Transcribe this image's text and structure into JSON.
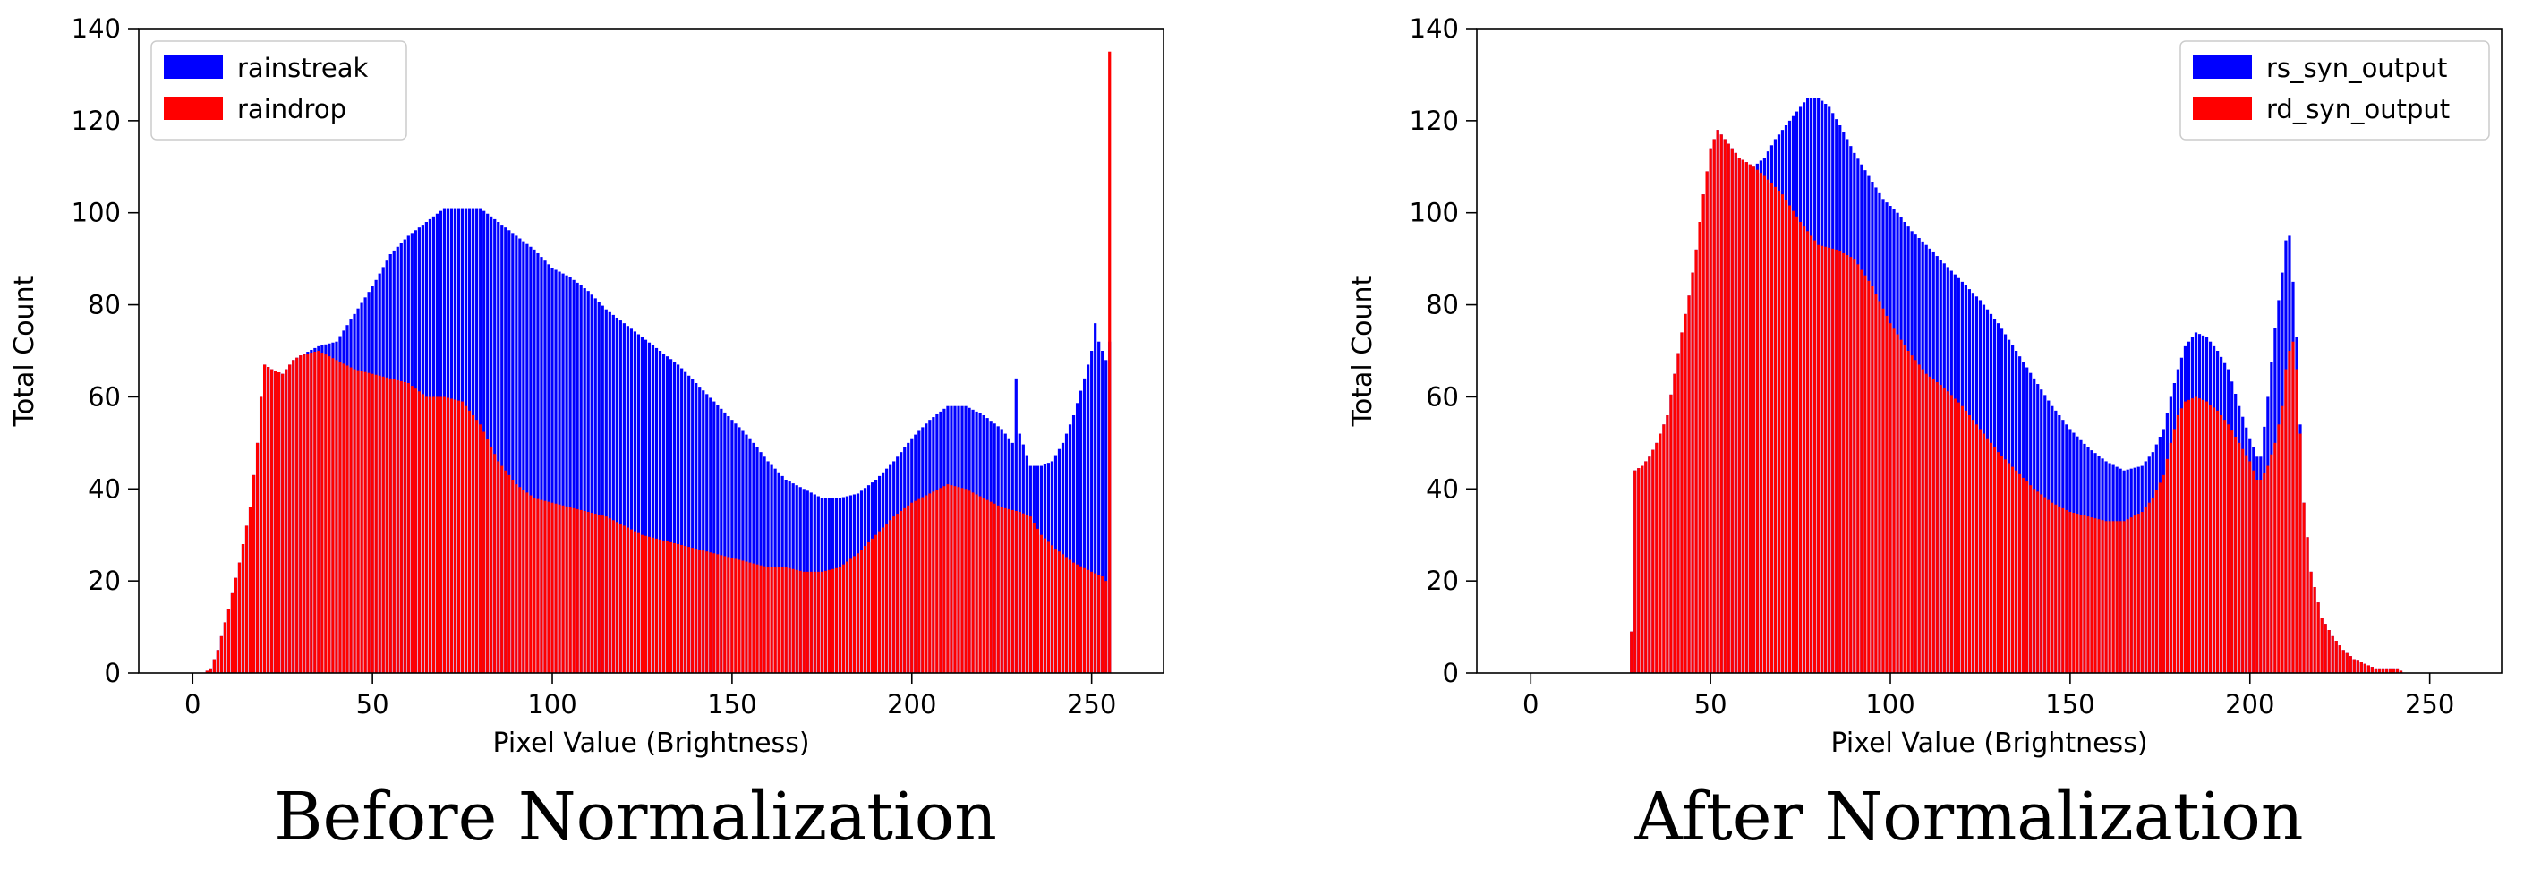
{
  "chart_data": [
    {
      "type": "bar",
      "stacking": "overlay",
      "caption": "Before Normalization",
      "xlabel": "Pixel Value (Brightness)",
      "ylabel": "Total Count",
      "xlim": [
        -15,
        270
      ],
      "ylim": [
        0,
        140
      ],
      "xticks": [
        0,
        50,
        100,
        150,
        200,
        250
      ],
      "yticks": [
        0,
        20,
        40,
        60,
        80,
        100,
        120,
        140
      ],
      "grid": false,
      "legend_position": "top-left",
      "series": [
        {
          "name": "rainstreak",
          "color": "#0000ff",
          "points": [
            [
              0,
              0
            ],
            [
              3,
              0
            ],
            [
              5,
              1
            ],
            [
              7,
              5
            ],
            [
              10,
              14
            ],
            [
              13,
              24
            ],
            [
              16,
              36
            ],
            [
              18,
              50
            ],
            [
              19,
              60
            ],
            [
              20,
              67
            ],
            [
              22,
              66
            ],
            [
              25,
              65
            ],
            [
              28,
              68
            ],
            [
              30,
              69
            ],
            [
              35,
              71
            ],
            [
              40,
              72
            ],
            [
              45,
              78
            ],
            [
              50,
              84
            ],
            [
              55,
              91
            ],
            [
              60,
              95
            ],
            [
              65,
              98
            ],
            [
              70,
              101
            ],
            [
              75,
              101
            ],
            [
              80,
              101
            ],
            [
              85,
              98
            ],
            [
              90,
              95
            ],
            [
              95,
              92
            ],
            [
              100,
              88
            ],
            [
              105,
              86
            ],
            [
              110,
              83
            ],
            [
              115,
              79
            ],
            [
              120,
              76
            ],
            [
              125,
              73
            ],
            [
              130,
              70
            ],
            [
              135,
              67
            ],
            [
              140,
              63
            ],
            [
              145,
              59
            ],
            [
              150,
              55
            ],
            [
              155,
              51
            ],
            [
              160,
              46
            ],
            [
              165,
              42
            ],
            [
              170,
              40
            ],
            [
              175,
              38
            ],
            [
              180,
              38
            ],
            [
              185,
              39
            ],
            [
              190,
              42
            ],
            [
              195,
              46
            ],
            [
              200,
              51
            ],
            [
              205,
              55
            ],
            [
              210,
              58
            ],
            [
              215,
              58
            ],
            [
              220,
              56
            ],
            [
              225,
              53
            ],
            [
              228,
              50
            ],
            [
              229,
              64
            ],
            [
              230,
              52
            ],
            [
              233,
              45
            ],
            [
              236,
              45
            ],
            [
              239,
              46
            ],
            [
              242,
              50
            ],
            [
              245,
              56
            ],
            [
              248,
              64
            ],
            [
              250,
              70
            ],
            [
              251,
              76
            ],
            [
              252,
              72
            ],
            [
              253,
              70
            ],
            [
              254,
              68
            ],
            [
              255,
              72
            ]
          ]
        },
        {
          "name": "raindrop",
          "color": "#ff0000",
          "points": [
            [
              0,
              0
            ],
            [
              3,
              0
            ],
            [
              5,
              1
            ],
            [
              7,
              5
            ],
            [
              10,
              14
            ],
            [
              13,
              24
            ],
            [
              16,
              36
            ],
            [
              18,
              50
            ],
            [
              19,
              60
            ],
            [
              20,
              67
            ],
            [
              22,
              66
            ],
            [
              25,
              65
            ],
            [
              28,
              68
            ],
            [
              30,
              69
            ],
            [
              35,
              70
            ],
            [
              40,
              68
            ],
            [
              45,
              66
            ],
            [
              50,
              65
            ],
            [
              55,
              64
            ],
            [
              60,
              63
            ],
            [
              65,
              60
            ],
            [
              70,
              60
            ],
            [
              75,
              59
            ],
            [
              80,
              54
            ],
            [
              85,
              46
            ],
            [
              90,
              41
            ],
            [
              95,
              38
            ],
            [
              100,
              37
            ],
            [
              105,
              36
            ],
            [
              110,
              35
            ],
            [
              115,
              34
            ],
            [
              120,
              32
            ],
            [
              125,
              30
            ],
            [
              130,
              29
            ],
            [
              135,
              28
            ],
            [
              140,
              27
            ],
            [
              145,
              26
            ],
            [
              150,
              25
            ],
            [
              155,
              24
            ],
            [
              160,
              23
            ],
            [
              165,
              23
            ],
            [
              170,
              22
            ],
            [
              175,
              22
            ],
            [
              180,
              23
            ],
            [
              185,
              26
            ],
            [
              190,
              30
            ],
            [
              195,
              34
            ],
            [
              200,
              37
            ],
            [
              205,
              39
            ],
            [
              210,
              41
            ],
            [
              215,
              40
            ],
            [
              220,
              38
            ],
            [
              225,
              36
            ],
            [
              230,
              35
            ],
            [
              233,
              34
            ],
            [
              236,
              30
            ],
            [
              240,
              27
            ],
            [
              245,
              24
            ],
            [
              250,
              22
            ],
            [
              253,
              21
            ],
            [
              254,
              20
            ],
            [
              255,
              135
            ]
          ]
        }
      ]
    },
    {
      "type": "bar",
      "stacking": "overlay",
      "caption": "After Normalization",
      "xlabel": "Pixel Value (Brightness)",
      "ylabel": "Total Count",
      "xlim": [
        -15,
        270
      ],
      "ylim": [
        0,
        140
      ],
      "xticks": [
        0,
        50,
        100,
        150,
        200,
        250
      ],
      "yticks": [
        0,
        20,
        40,
        60,
        80,
        100,
        120,
        140
      ],
      "grid": false,
      "legend_position": "top-right",
      "series": [
        {
          "name": "rs_syn_output",
          "color": "#0000ff",
          "points": [
            [
              27,
              0
            ],
            [
              28,
              9
            ],
            [
              29,
              44
            ],
            [
              31,
              45
            ],
            [
              33,
              47
            ],
            [
              35,
              50
            ],
            [
              38,
              56
            ],
            [
              40,
              65
            ],
            [
              42,
              74
            ],
            [
              44,
              82
            ],
            [
              46,
              92
            ],
            [
              48,
              104
            ],
            [
              50,
              114
            ],
            [
              52,
              118
            ],
            [
              55,
              115
            ],
            [
              58,
              112
            ],
            [
              60,
              111
            ],
            [
              62,
              110
            ],
            [
              65,
              112
            ],
            [
              68,
              116
            ],
            [
              71,
              119
            ],
            [
              74,
              122
            ],
            [
              77,
              125
            ],
            [
              80,
              125
            ],
            [
              83,
              123
            ],
            [
              86,
              119
            ],
            [
              90,
              113
            ],
            [
              94,
              108
            ],
            [
              98,
              103
            ],
            [
              102,
              100
            ],
            [
              106,
              96
            ],
            [
              110,
              93
            ],
            [
              115,
              89
            ],
            [
              120,
              85
            ],
            [
              125,
              81
            ],
            [
              130,
              76
            ],
            [
              135,
              70
            ],
            [
              140,
              64
            ],
            [
              145,
              58
            ],
            [
              150,
              53
            ],
            [
              155,
              49
            ],
            [
              160,
              46
            ],
            [
              165,
              44
            ],
            [
              170,
              45
            ],
            [
              173,
              48
            ],
            [
              176,
              53
            ],
            [
              178,
              60
            ],
            [
              180,
              66
            ],
            [
              182,
              71
            ],
            [
              185,
              74
            ],
            [
              188,
              73
            ],
            [
              191,
              70
            ],
            [
              194,
              66
            ],
            [
              197,
              58
            ],
            [
              200,
              51
            ],
            [
              202,
              47
            ],
            [
              203,
              47
            ],
            [
              205,
              60
            ],
            [
              207,
              75
            ],
            [
              209,
              87
            ],
            [
              210,
              94
            ],
            [
              211,
              95
            ],
            [
              212,
              85
            ],
            [
              213,
              73
            ],
            [
              214,
              54
            ],
            [
              215,
              37
            ],
            [
              217,
              22
            ],
            [
              220,
              12
            ],
            [
              223,
              8
            ],
            [
              226,
              5
            ],
            [
              229,
              3
            ],
            [
              232,
              2
            ],
            [
              235,
              1
            ],
            [
              238,
              1
            ],
            [
              241,
              1
            ],
            [
              243,
              0
            ]
          ]
        },
        {
          "name": "rd_syn_output",
          "color": "#ff0000",
          "points": [
            [
              27,
              0
            ],
            [
              28,
              9
            ],
            [
              29,
              44
            ],
            [
              31,
              45
            ],
            [
              33,
              47
            ],
            [
              35,
              50
            ],
            [
              38,
              56
            ],
            [
              40,
              65
            ],
            [
              42,
              74
            ],
            [
              44,
              82
            ],
            [
              46,
              92
            ],
            [
              48,
              104
            ],
            [
              50,
              114
            ],
            [
              52,
              118
            ],
            [
              55,
              115
            ],
            [
              58,
              112
            ],
            [
              60,
              111
            ],
            [
              62,
              110
            ],
            [
              65,
              108
            ],
            [
              70,
              104
            ],
            [
              75,
              98
            ],
            [
              80,
              93
            ],
            [
              85,
              92
            ],
            [
              90,
              90
            ],
            [
              95,
              84
            ],
            [
              100,
              76
            ],
            [
              105,
              70
            ],
            [
              110,
              65
            ],
            [
              115,
              62
            ],
            [
              120,
              58
            ],
            [
              125,
              53
            ],
            [
              130,
              48
            ],
            [
              135,
              44
            ],
            [
              140,
              40
            ],
            [
              145,
              37
            ],
            [
              150,
              35
            ],
            [
              155,
              34
            ],
            [
              160,
              33
            ],
            [
              165,
              33
            ],
            [
              170,
              35
            ],
            [
              173,
              38
            ],
            [
              176,
              43
            ],
            [
              178,
              50
            ],
            [
              180,
              56
            ],
            [
              182,
              59
            ],
            [
              185,
              60
            ],
            [
              188,
              59
            ],
            [
              191,
              57
            ],
            [
              194,
              54
            ],
            [
              197,
              50
            ],
            [
              200,
              46
            ],
            [
              202,
              42
            ],
            [
              203,
              42
            ],
            [
              205,
              45
            ],
            [
              207,
              50
            ],
            [
              209,
              58
            ],
            [
              210,
              66
            ],
            [
              211,
              70
            ],
            [
              212,
              72
            ],
            [
              213,
              66
            ],
            [
              214,
              52
            ],
            [
              215,
              37
            ],
            [
              217,
              22
            ],
            [
              220,
              12
            ],
            [
              223,
              8
            ],
            [
              226,
              5
            ],
            [
              229,
              3
            ],
            [
              232,
              2
            ],
            [
              235,
              1
            ],
            [
              238,
              1
            ],
            [
              241,
              1
            ],
            [
              243,
              0
            ]
          ]
        }
      ]
    }
  ]
}
